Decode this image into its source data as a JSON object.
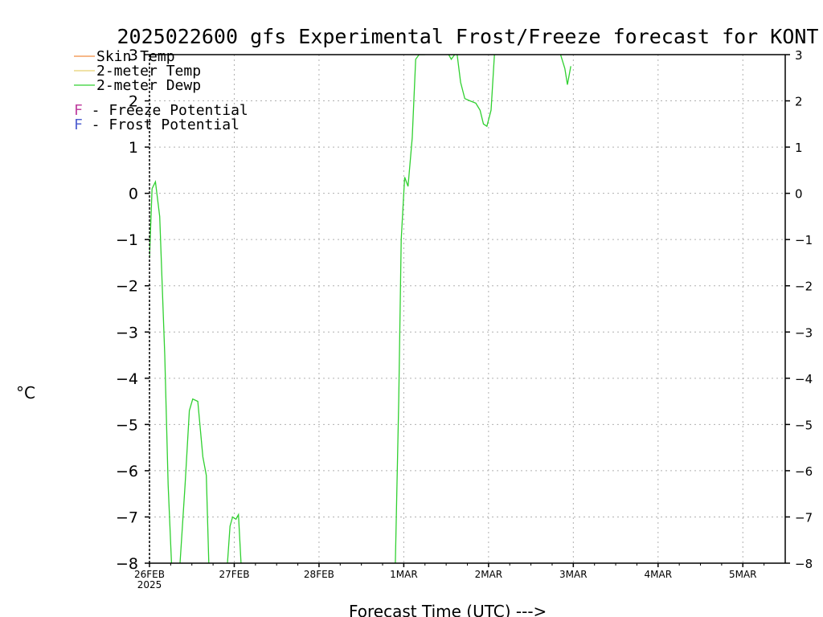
{
  "chart_data": {
    "type": "line",
    "title": "2025022600 gfs Experimental Frost/Freeze forecast for KONT",
    "xlabel": "Forecast Time (UTC) --->",
    "ylabel": "°C",
    "ylim": [
      -8,
      3
    ],
    "yticks": [
      -8,
      -7,
      -6,
      -5,
      -4,
      -3,
      -2,
      -1,
      0,
      1,
      2,
      3
    ],
    "xlim": [
      0,
      7.5
    ],
    "xticks": [
      {
        "value": 0,
        "label": "26FEB",
        "sublabel": "2025"
      },
      {
        "value": 1,
        "label": "27FEB"
      },
      {
        "value": 2,
        "label": "28FEB"
      },
      {
        "value": 3,
        "label": "1MAR"
      },
      {
        "value": 4,
        "label": "2MAR"
      },
      {
        "value": 5,
        "label": "3MAR"
      },
      {
        "value": 6,
        "label": "4MAR"
      },
      {
        "value": 7,
        "label": "5MAR"
      }
    ],
    "grid": true,
    "legend": [
      {
        "name": "Skin Temp",
        "color": "#f08c40"
      },
      {
        "name": "2-meter Temp",
        "color": "#e8d070"
      },
      {
        "name": "2-meter Dewp",
        "color": "#30d030"
      }
    ],
    "potential_legend": [
      {
        "letter": "F",
        "text": " - Freeze Potential",
        "color": "#c040a0"
      },
      {
        "letter": "F",
        "text": " - Frost Potential",
        "color": "#5060d0"
      }
    ],
    "series": [
      {
        "name": "2-meter Dewp",
        "color": "#30d030",
        "segments": [
          [
            [
              0.0,
              -1.4
            ],
            [
              0.03,
              0.1
            ],
            [
              0.07,
              0.25
            ],
            [
              0.12,
              -0.5
            ],
            [
              0.18,
              -3.5
            ],
            [
              0.22,
              -6.3
            ],
            [
              0.26,
              -8.0
            ]
          ],
          [
            [
              0.36,
              -8.0
            ],
            [
              0.42,
              -6.3
            ],
            [
              0.47,
              -4.7
            ],
            [
              0.51,
              -4.45
            ],
            [
              0.57,
              -4.5
            ],
            [
              0.63,
              -5.7
            ],
            [
              0.67,
              -6.1
            ],
            [
              0.7,
              -8.0
            ]
          ],
          [
            [
              0.92,
              -8.0
            ],
            [
              0.95,
              -7.2
            ],
            [
              0.98,
              -7.0
            ],
            [
              1.02,
              -7.05
            ],
            [
              1.05,
              -6.95
            ],
            [
              1.08,
              -8.0
            ]
          ],
          [
            [
              2.9,
              -8.0
            ],
            [
              2.94,
              -4.5
            ],
            [
              2.97,
              -1.0
            ],
            [
              3.01,
              0.35
            ],
            [
              3.05,
              0.15
            ],
            [
              3.1,
              1.2
            ],
            [
              3.14,
              2.9
            ],
            [
              3.18,
              3.0
            ],
            [
              3.25,
              3.0
            ]
          ],
          [
            [
              3.53,
              3.0
            ],
            [
              3.56,
              2.9
            ],
            [
              3.6,
              3.0
            ]
          ],
          [
            [
              3.63,
              3.0
            ],
            [
              3.67,
              2.4
            ],
            [
              3.72,
              2.05
            ],
            [
              3.78,
              2.0
            ],
            [
              3.85,
              1.95
            ],
            [
              3.9,
              1.8
            ],
            [
              3.94,
              1.5
            ],
            [
              3.98,
              1.45
            ],
            [
              4.03,
              1.8
            ],
            [
              4.07,
              3.0
            ]
          ],
          [
            [
              4.85,
              3.0
            ],
            [
              4.9,
              2.7
            ],
            [
              4.93,
              2.35
            ],
            [
              4.97,
              2.75
            ]
          ]
        ]
      }
    ]
  }
}
